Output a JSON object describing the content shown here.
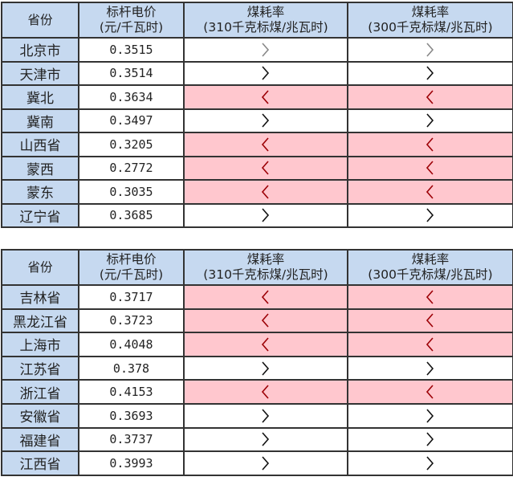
{
  "colors": {
    "header_bg": "#c6d9f0",
    "highlight_bg": "#ffc7ce",
    "highlight_arrow": "#9c0006",
    "arrow": "#111111"
  },
  "header": {
    "province": "省份",
    "price_line1": "标杆电价",
    "price_line2": "(元/千瓦时)",
    "coal310_line1": "煤耗率",
    "coal310_line2": "(310千克标煤/兆瓦时)",
    "coal300_line1": "煤耗率",
    "coal300_line2": "(300千克标煤/兆瓦时)"
  },
  "tables": [
    {
      "rows": [
        {
          "province": "北京市",
          "price": "0.3515",
          "c310": ">",
          "c300": ">",
          "faded": true
        },
        {
          "province": "天津市",
          "price": "0.3514",
          "c310": ">",
          "c300": ">"
        },
        {
          "province": "冀北",
          "price": "0.3634",
          "c310": "<",
          "c300": "<"
        },
        {
          "province": "冀南",
          "price": "0.3497",
          "c310": ">",
          "c300": ">"
        },
        {
          "province": "山西省",
          "price": "0.3205",
          "c310": "<",
          "c300": "<"
        },
        {
          "province": "蒙西",
          "price": "0.2772",
          "c310": "<",
          "c300": "<"
        },
        {
          "province": "蒙东",
          "price": "0.3035",
          "c310": "<",
          "c300": "<"
        },
        {
          "province": "辽宁省",
          "price": "0.3685",
          "c310": ">",
          "c300": ">"
        }
      ]
    },
    {
      "rows": [
        {
          "province": "吉林省",
          "price": "0.3717",
          "c310": "<",
          "c300": "<"
        },
        {
          "province": "黑龙江省",
          "price": "0.3723",
          "c310": "<",
          "c300": "<"
        },
        {
          "province": "上海市",
          "price": "0.4048",
          "c310": "<",
          "c300": "<"
        },
        {
          "province": "江苏省",
          "price": "0.378",
          "c310": ">",
          "c300": ">"
        },
        {
          "province": "浙江省",
          "price": "0.4153",
          "c310": "<",
          "c300": "<"
        },
        {
          "province": "安徽省",
          "price": "0.3693",
          "c310": ">",
          "c300": ">"
        },
        {
          "province": "福建省",
          "price": "0.3737",
          "c310": ">",
          "c300": ">"
        },
        {
          "province": "江西省",
          "price": "0.3993",
          "c310": ">",
          "c300": ">"
        }
      ]
    }
  ]
}
